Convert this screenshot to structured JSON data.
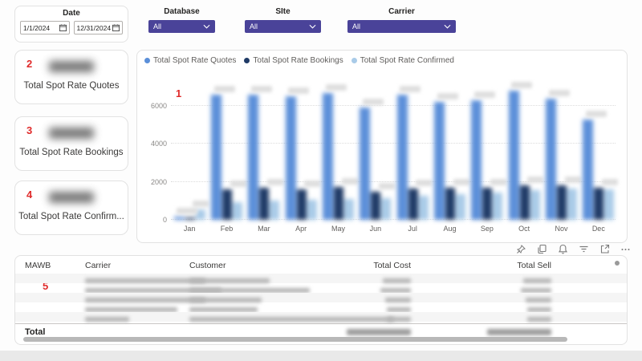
{
  "annotations": {
    "color": "#E02B2B",
    "chart_marker": "1",
    "quotes_marker": "2",
    "bookings_marker": "3",
    "confirmed_marker": "4",
    "table_marker": "5"
  },
  "filters": {
    "date": {
      "label": "Date",
      "start": "1/1/2024",
      "end": "12/31/2024"
    },
    "database": {
      "label": "Database",
      "value": "All"
    },
    "site": {
      "label": "SIte",
      "value": "All"
    },
    "carrier": {
      "label": "Carrier",
      "value": "All"
    }
  },
  "kpi_cards": [
    {
      "label": "Total Spot Rate Quotes",
      "value_redacted": true
    },
    {
      "label": "Total Spot Rate Bookings",
      "value_redacted": true
    },
    {
      "label": "Total Spot Rate Confirm...",
      "value_redacted": true
    }
  ],
  "chart_data": {
    "type": "bar",
    "title": "",
    "categories": [
      "Jan",
      "Feb",
      "Mar",
      "Apr",
      "May",
      "Jun",
      "Jul",
      "Aug",
      "Sep",
      "Oct",
      "Nov",
      "Dec"
    ],
    "series": [
      {
        "name": "Total Spot Rate Quotes",
        "color": "#5B8FD9",
        "values": [
          150,
          6600,
          6600,
          6500,
          6700,
          5900,
          6600,
          6200,
          6300,
          6800,
          6400,
          5300
        ]
      },
      {
        "name": "Total Spot Rate Bookings",
        "color": "#1F3A66",
        "values": [
          120,
          1600,
          1700,
          1600,
          1750,
          1500,
          1650,
          1700,
          1700,
          1800,
          1800,
          1700
        ]
      },
      {
        "name": "Total Spot Rate Confirmed",
        "color": "#A9CBE8",
        "values": [
          550,
          950,
          1000,
          1050,
          1100,
          1150,
          1250,
          1350,
          1450,
          1550,
          1650,
          1600
        ]
      }
    ],
    "ylim": [
      0,
      7400
    ],
    "yticks": [
      0,
      2000,
      4000,
      6000
    ],
    "xlabel": "",
    "ylabel": "",
    "legend_position": "top",
    "grid": true,
    "values_blurred": true
  },
  "table": {
    "columns": [
      "MAWB",
      "Carrier",
      "Customer",
      "Total Cost",
      "Total Sell"
    ],
    "total_label": "Total",
    "rows_redacted": true,
    "row_count": 5
  }
}
